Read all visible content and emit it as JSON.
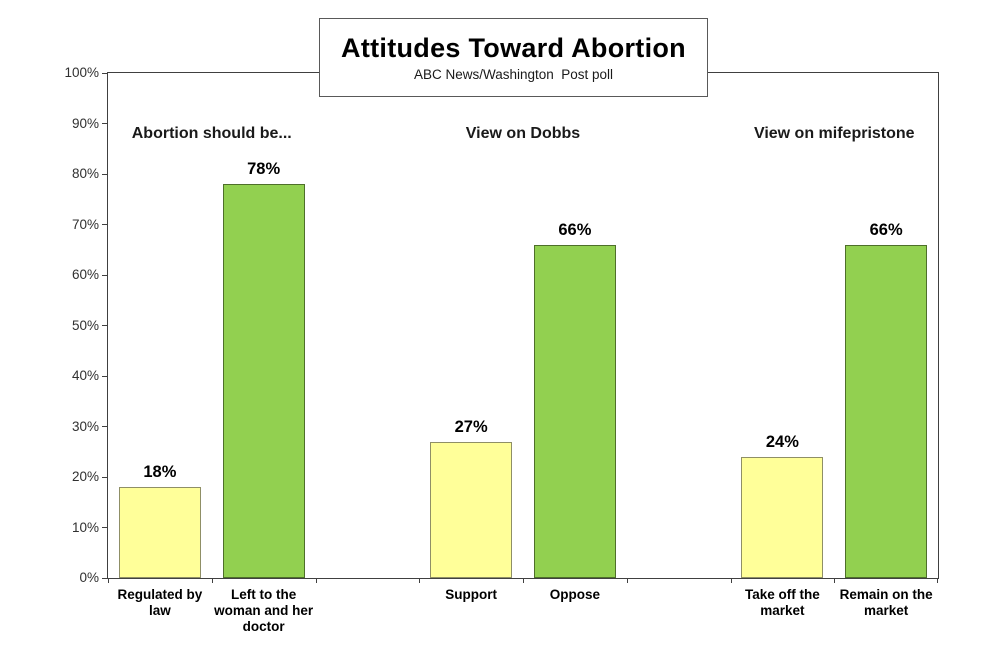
{
  "chart_data": {
    "type": "bar",
    "title": "Attitudes Toward Abortion",
    "subtitle": "ABC News/Washington  Post poll",
    "xlabel": "",
    "ylabel": "",
    "ylim": [
      0,
      100
    ],
    "ytick_labels": [
      "0%",
      "10%",
      "20%",
      "30%",
      "40%",
      "50%",
      "60%",
      "70%",
      "80%",
      "90%",
      "100%"
    ],
    "grid": false,
    "legend_position": "none",
    "colors": {
      "low_option": "#ffff99",
      "high_option": "#92d050",
      "axis": "#404040"
    },
    "groups": [
      {
        "header": "Abortion should be...",
        "bars": [
          {
            "category": "Regulated by law",
            "value": 18,
            "value_label": "18%",
            "fill": "#ffff99",
            "border": "#8f8f66"
          },
          {
            "category": "Left to the woman and her doctor",
            "value": 78,
            "value_label": "78%",
            "fill": "#92d050",
            "border": "#4e6f2a"
          }
        ]
      },
      {
        "header": "View on Dobbs",
        "bars": [
          {
            "category": "Support",
            "value": 27,
            "value_label": "27%",
            "fill": "#ffff99",
            "border": "#8f8f66"
          },
          {
            "category": "Oppose",
            "value": 66,
            "value_label": "66%",
            "fill": "#92d050",
            "border": "#4e6f2a"
          }
        ]
      },
      {
        "header": "View on mifepristone",
        "bars": [
          {
            "category": "Take off the market",
            "value": 24,
            "value_label": "24%",
            "fill": "#ffff99",
            "border": "#8f8f66"
          },
          {
            "category": "Remain on the market",
            "value": 66,
            "value_label": "66%",
            "fill": "#92d050",
            "border": "#4e6f2a"
          }
        ]
      }
    ]
  }
}
